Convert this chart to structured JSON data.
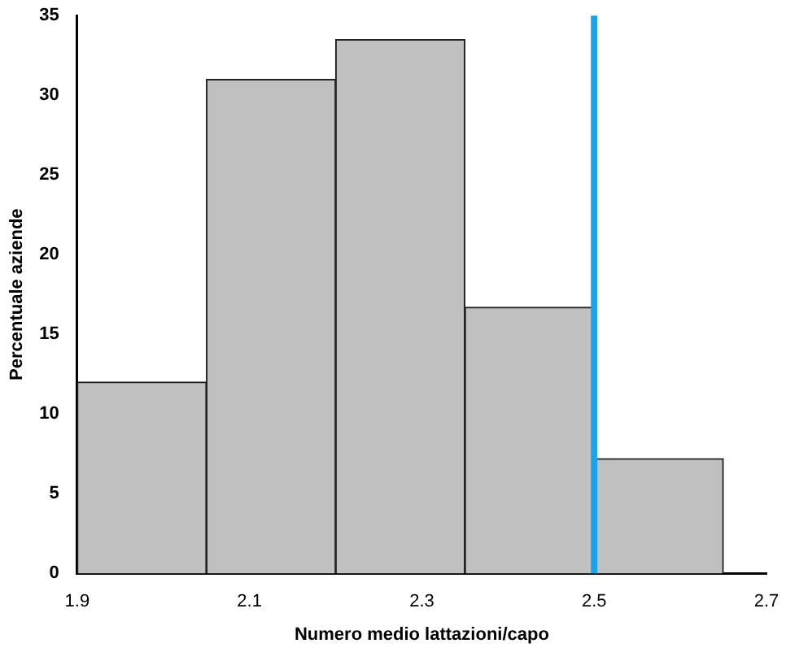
{
  "chart_data": {
    "type": "histogram",
    "xlabel": "Numero medio lattazioni/capo",
    "ylabel": "Percentuale aziende",
    "bins": [
      1.9,
      2.05,
      2.2,
      2.35,
      2.5,
      2.65
    ],
    "values": [
      12,
      31,
      33.5,
      16.7,
      7.2
    ],
    "color": "#c0c0c0",
    "xlim": [
      1.9,
      2.7
    ],
    "xticks": [
      1.9,
      2.1,
      2.3,
      2.5,
      2.7
    ],
    "ylim": [
      0,
      35
    ],
    "yticks": [
      0,
      5,
      10,
      15,
      20,
      25,
      30,
      35
    ],
    "grid": false,
    "legend": false,
    "ref_lines": [
      {
        "axis": "x",
        "value": 2.5,
        "color": "#1aa3e8"
      }
    ]
  }
}
